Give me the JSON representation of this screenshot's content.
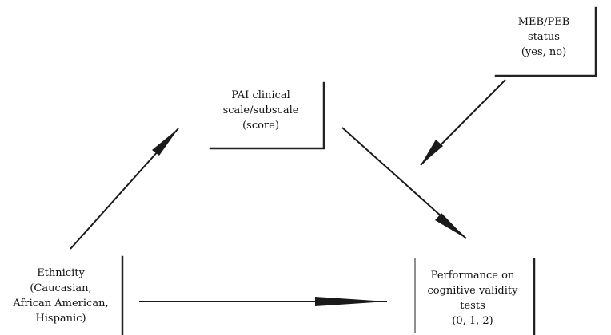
{
  "nodes": {
    "pai": {
      "lines": [
        "PAI clinical",
        "scale/subscale",
        "(score)"
      ]
    },
    "meb": {
      "lines": [
        "MEB/PEB",
        "status",
        "(yes, no)"
      ]
    },
    "ethnicity": {
      "lines": [
        "Ethnicity",
        "(Caucasian,",
        "African American,",
        "Hispanic)"
      ]
    },
    "performance": {
      "lines": [
        "Performance on",
        "cognitive validity",
        "tests",
        "(0, 1, 2)"
      ]
    }
  },
  "edges": [
    {
      "from": "ethnicity",
      "to": "pai"
    },
    {
      "from": "pai",
      "to": "performance"
    },
    {
      "from": "meb",
      "to": "pai-performance-path"
    },
    {
      "from": "ethnicity",
      "to": "performance"
    }
  ]
}
